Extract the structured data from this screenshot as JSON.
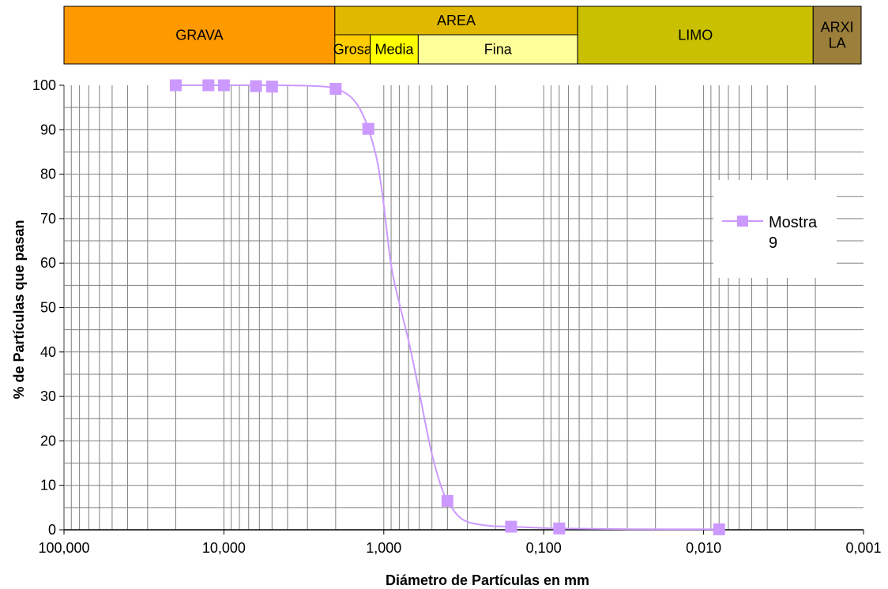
{
  "classification": {
    "cells": [
      {
        "id": "grava",
        "lines": [
          "GRAVA"
        ],
        "color": "#ff9900",
        "from": 100,
        "to": 2
      },
      {
        "id": "area",
        "lines": [
          "AREA"
        ],
        "color": "#e0b800",
        "from": 2,
        "to": 0.06
      },
      {
        "id": "grosa",
        "lines": [
          "Grosa"
        ],
        "color": "#ffcc00",
        "from": 2,
        "to": 1.2
      },
      {
        "id": "media",
        "lines": [
          "Media"
        ],
        "color": "#ffff00",
        "from": 1.2,
        "to": 0.6
      },
      {
        "id": "fina",
        "lines": [
          "Fina"
        ],
        "color": "#ffff99",
        "from": 0.6,
        "to": 0.06
      },
      {
        "id": "limo",
        "lines": [
          "LIMO"
        ],
        "color": "#c8c000",
        "from": 0.06,
        "to": 0.002
      },
      {
        "id": "arxila",
        "lines": [
          "ARXI",
          "LA"
        ],
        "color": "#9c7f3a",
        "from": 0.002,
        "to": 0.001
      }
    ]
  },
  "chart_data": {
    "type": "scatter",
    "title": "",
    "xlabel": "Diámetro de Partículas en mm",
    "ylabel": "% de Partículas que pasan",
    "x_scale": "log",
    "x_reversed": true,
    "xlim": [
      100,
      0.001
    ],
    "ylim": [
      0,
      100
    ],
    "x_ticks": [
      100,
      10,
      1,
      0.1,
      0.01,
      0.001
    ],
    "x_tick_labels": [
      "100,000",
      "10,000",
      "1,000",
      "0,100",
      "0,010",
      "0,001"
    ],
    "y_ticks": [
      0,
      10,
      20,
      30,
      40,
      50,
      60,
      70,
      80,
      90,
      100
    ],
    "y_tick_labels": [
      "0",
      "10",
      "20",
      "30",
      "40",
      "50",
      "60",
      "70",
      "80",
      "90",
      "100"
    ],
    "grid": true,
    "legend_position": "right",
    "series": [
      {
        "name": "Mostra 9",
        "legend_lines": [
          "Mostra",
          "9"
        ],
        "color": "#cc99ff",
        "marker": "square",
        "x": [
          20,
          12.5,
          10,
          6.3,
          5,
          2,
          1.25,
          0.4,
          0.16,
          0.08,
          0.008
        ],
        "y": [
          100,
          100,
          100,
          99.8,
          99.7,
          99.2,
          90.2,
          6.5,
          0.7,
          0.3,
          0.1
        ],
        "curve": {
          "x": [
            20,
            5,
            3,
            2.2,
            1.9,
            1.6,
            1.4,
            1.25,
            1.1,
            1.0,
            0.9,
            0.8,
            0.7,
            0.6,
            0.55,
            0.5,
            0.45,
            0.42,
            0.4,
            0.35,
            0.3,
            0.22,
            0.16,
            0.1,
            0.08,
            0.03,
            0.008
          ],
          "y": [
            100,
            100,
            99.9,
            99.6,
            99.0,
            97.3,
            94.5,
            90.2,
            83.0,
            73.0,
            59.5,
            51.0,
            42.5,
            31.0,
            24.0,
            17.0,
            11.0,
            8.0,
            6.5,
            3.5,
            1.8,
            0.9,
            0.7,
            0.4,
            0.3,
            0.15,
            0.1
          ]
        }
      }
    ]
  }
}
